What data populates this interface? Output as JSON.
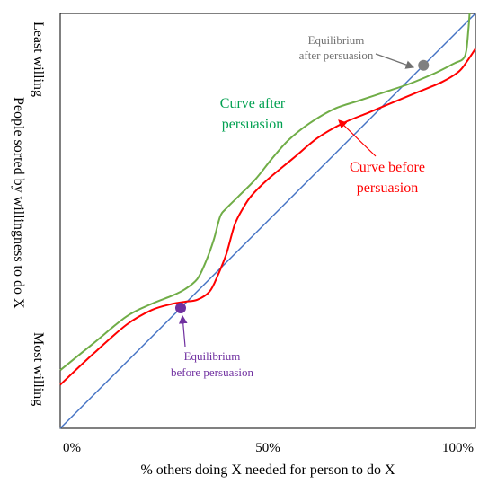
{
  "chart_data": {
    "type": "line",
    "xlabel": "% others doing X needed for person to do X",
    "ylabel": "People sorted by willingness to do X",
    "y_top_label": "Least willing",
    "y_bottom_label": "Most willing",
    "xlim": [
      0,
      100
    ],
    "ylim": [
      0,
      100
    ],
    "x_ticks": [
      "0%",
      "50%",
      "100%"
    ],
    "x_tick_values": [
      0,
      50,
      100
    ],
    "grid": false,
    "legend": "none (inline annotations)",
    "series": [
      {
        "name": "Curve before persuasion",
        "color": "#ff0000",
        "points": [
          [
            0,
            10.5
          ],
          [
            8,
            18
          ],
          [
            16,
            25
          ],
          [
            22,
            28.5
          ],
          [
            27,
            30
          ],
          [
            30,
            30.5
          ],
          [
            33,
            31
          ],
          [
            36,
            33
          ],
          [
            38,
            37
          ],
          [
            40,
            42
          ],
          [
            42,
            49
          ],
          [
            44,
            53
          ],
          [
            46,
            56
          ],
          [
            50,
            60
          ],
          [
            56,
            65
          ],
          [
            62,
            70
          ],
          [
            68,
            73.5
          ],
          [
            74,
            76
          ],
          [
            80,
            78.5
          ],
          [
            86,
            81
          ],
          [
            92,
            83.5
          ],
          [
            96,
            86
          ],
          [
            98,
            88.5
          ],
          [
            100,
            91.5
          ]
        ]
      },
      {
        "name": "Curve after persuasion",
        "color": "#70ad47",
        "points": [
          [
            0,
            14
          ],
          [
            8,
            20.5
          ],
          [
            16,
            27
          ],
          [
            22,
            30
          ],
          [
            27,
            32
          ],
          [
            30,
            33.5
          ],
          [
            33,
            36
          ],
          [
            35,
            40
          ],
          [
            37,
            45.5
          ],
          [
            38.5,
            51
          ],
          [
            40,
            53
          ],
          [
            43,
            56
          ],
          [
            47,
            60
          ],
          [
            51,
            65
          ],
          [
            55,
            69.5
          ],
          [
            60,
            73.5
          ],
          [
            66,
            77
          ],
          [
            72,
            79
          ],
          [
            78,
            81
          ],
          [
            84,
            83
          ],
          [
            90,
            85.5
          ],
          [
            95,
            88
          ],
          [
            97,
            89
          ],
          [
            97.8,
            91
          ],
          [
            98.3,
            96
          ],
          [
            98.6,
            100
          ]
        ]
      },
      {
        "name": "",
        "color": "#4472c4",
        "points": [
          [
            0,
            0
          ],
          [
            100,
            100
          ]
        ]
      }
    ],
    "equilibria": [
      {
        "label": "Equilibrium before persuasion",
        "x": 29,
        "y": 29,
        "color": "#7030a0"
      },
      {
        "label": "Equilibrium after persuasion",
        "x": 87.5,
        "y": 87.5,
        "color": "#808080"
      }
    ],
    "annotations": {
      "curve_after": {
        "line1": "Curve after",
        "line2": "persuasion",
        "color": "#00a050"
      },
      "curve_before": {
        "line1": "Curve before",
        "line2": "persuasion",
        "color": "#ff0000"
      },
      "eq_after": {
        "line1": "Equilibrium",
        "line2": "after persuasion",
        "color": "#707070"
      },
      "eq_before": {
        "line1": "Equilibrium",
        "line2": "before persuasion",
        "color": "#7030a0"
      }
    }
  }
}
